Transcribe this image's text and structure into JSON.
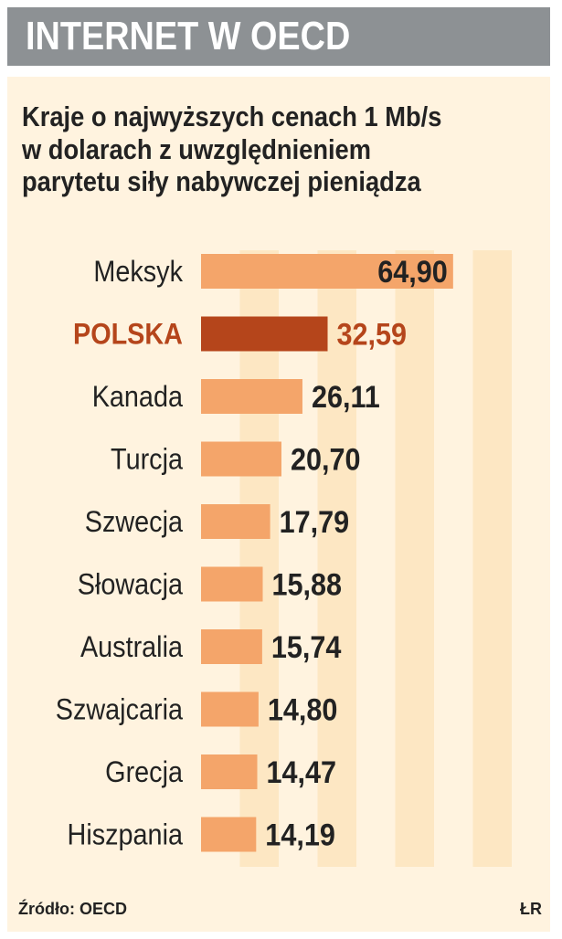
{
  "header": {
    "title": "INTERNET W OECD"
  },
  "chart_data": {
    "type": "bar",
    "orientation": "horizontal",
    "title": "Kraje o najwyższych cenach 1 Mb/s w dolarach z uwzględnieniem parytetu siły nabywczej pieniądza",
    "title_lines": [
      "Kraje o najwyższych cenach 1 Mb/s",
      "w dolarach z uwzględnieniem",
      "parytetu siły nabywczej pieniądza"
    ],
    "categories": [
      "Meksyk",
      "POLSKA",
      "Kanada",
      "Turcja",
      "Szwecja",
      "Słowacja",
      "Australia",
      "Szwajcaria",
      "Grecja",
      "Hiszpania"
    ],
    "values": [
      64.9,
      32.59,
      26.11,
      20.7,
      17.79,
      15.88,
      15.74,
      14.8,
      14.47,
      14.19
    ],
    "value_labels": [
      "64,90",
      "32,59",
      "26,11",
      "20,70",
      "17,79",
      "15,88",
      "15,74",
      "14,80",
      "14,47",
      "14,19"
    ],
    "highlight": "POLSKA",
    "xlim": [
      0,
      80
    ],
    "xlabel": "",
    "ylabel": "",
    "grid": "vertical bands",
    "colors": {
      "bar": "#f4a56a",
      "highlight_bar": "#b5451b",
      "highlight_text": "#b5451b",
      "text": "#222222",
      "band": "#fde7c3",
      "panel": "#fff3df",
      "header": "#8d9194"
    }
  },
  "footer": {
    "source": "Źródło: OECD",
    "author": "ŁR"
  }
}
